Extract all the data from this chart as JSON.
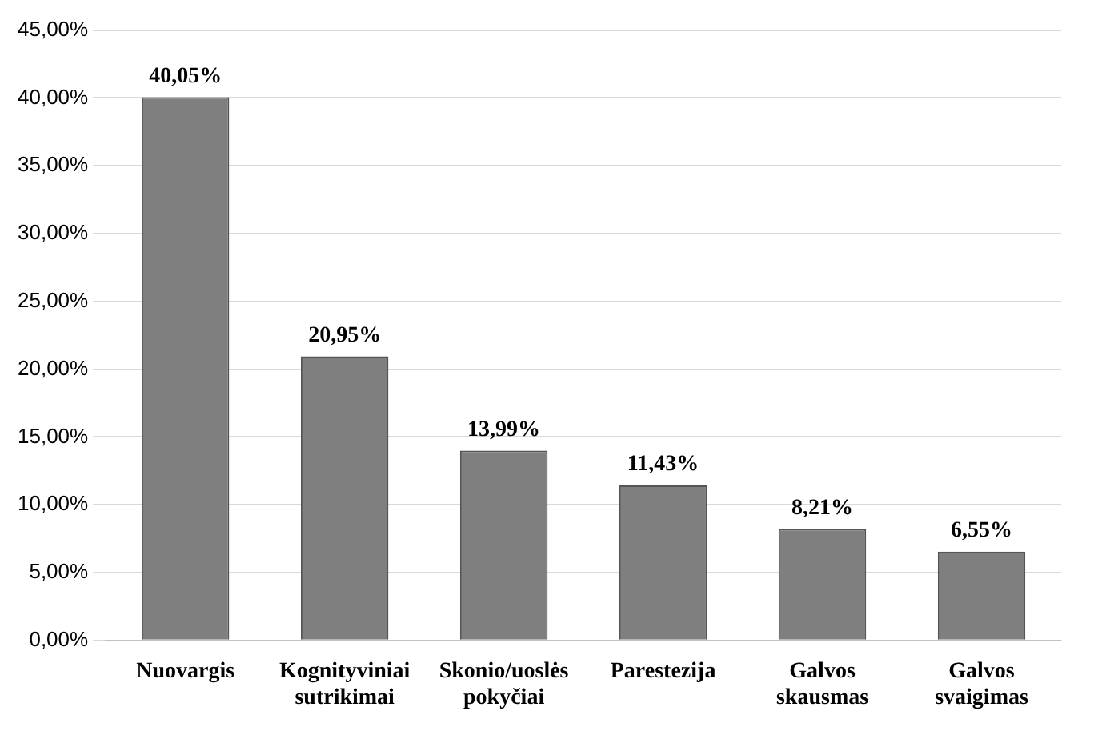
{
  "chart_data": {
    "type": "bar",
    "categories": [
      "Nuovargis",
      "Kognityviniai sutrikimai",
      "Skonio/uoslės pokyčiai",
      "Parestezija",
      "Galvos skausmas",
      "Galvos svaigimas"
    ],
    "values": [
      40.05,
      20.95,
      13.99,
      11.43,
      8.21,
      6.55
    ],
    "value_labels": [
      "40,05%",
      "20,95%",
      "13,99%",
      "11,43%",
      "8,21%",
      "6,55%"
    ],
    "color": "#7f7f7f",
    "ylim": [
      0,
      45
    ],
    "yticks": [
      {
        "value": 0,
        "label": "0,00%"
      },
      {
        "value": 5,
        "label": "5,00%"
      },
      {
        "value": 10,
        "label": "10,00%"
      },
      {
        "value": 15,
        "label": "15,00%"
      },
      {
        "value": 20,
        "label": "20,00%"
      },
      {
        "value": 25,
        "label": "25,00%"
      },
      {
        "value": 30,
        "label": "30,00%"
      },
      {
        "value": 35,
        "label": "35,00%"
      },
      {
        "value": 40,
        "label": "40,00%"
      },
      {
        "value": 45,
        "label": "45,00%"
      }
    ],
    "grid": "y"
  }
}
